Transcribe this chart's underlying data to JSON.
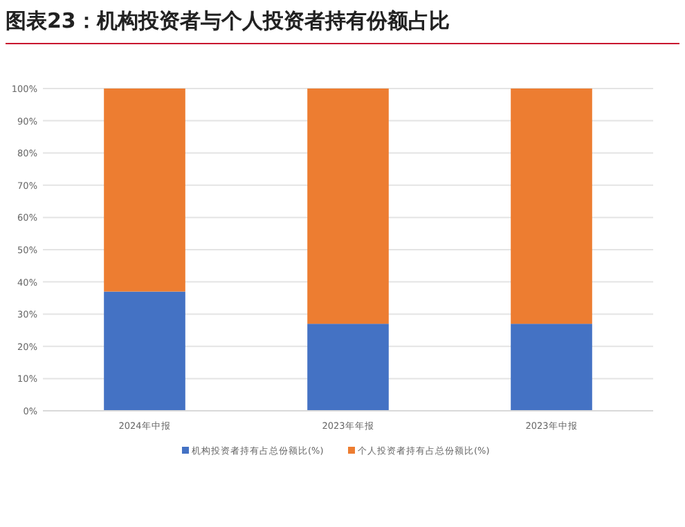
{
  "chart_data": {
    "type": "bar",
    "stacked": true,
    "title": "图表23：机构投资者与个人投资者持有份额占比",
    "categories": [
      "2024年中报",
      "2023年年报",
      "2023年中报"
    ],
    "series": [
      {
        "name": "机构投资者持有占总份额比(%)",
        "color": "#4472c4",
        "values": [
          37,
          27,
          27
        ]
      },
      {
        "name": "个人投资者持有占总份额比(%)",
        "color": "#ed7d31",
        "values": [
          63,
          73,
          73
        ]
      }
    ],
    "ylim": [
      0,
      100
    ],
    "yticks": [
      {
        "value": 0,
        "label": "0%"
      },
      {
        "value": 10,
        "label": "10%"
      },
      {
        "value": 20,
        "label": "20%"
      },
      {
        "value": 30,
        "label": "30%"
      },
      {
        "value": 40,
        "label": "40%"
      },
      {
        "value": 50,
        "label": "50%"
      },
      {
        "value": 60,
        "label": "60%"
      },
      {
        "value": 70,
        "label": "70%"
      },
      {
        "value": 80,
        "label": "80%"
      },
      {
        "value": 90,
        "label": "90%"
      },
      {
        "value": 100,
        "label": "100%"
      }
    ],
    "grid": "y",
    "legend": "bottom"
  }
}
